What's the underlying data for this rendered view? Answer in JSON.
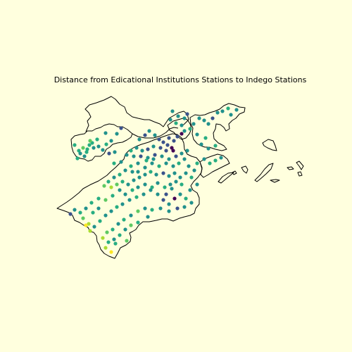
{
  "title": "Distance from Edicational Institutions Stations to Indego Stations",
  "colors": {
    "background": "#ffffde",
    "boundary": "#000000",
    "colormap": [
      "#440154",
      "#3b528b",
      "#21918c",
      "#27ad81",
      "#5ec962",
      "#aadc32",
      "#fde725"
    ]
  },
  "map": {
    "type": "scatter",
    "legend": "none",
    "axes": "off",
    "point_color_scale": "viridis"
  }
}
